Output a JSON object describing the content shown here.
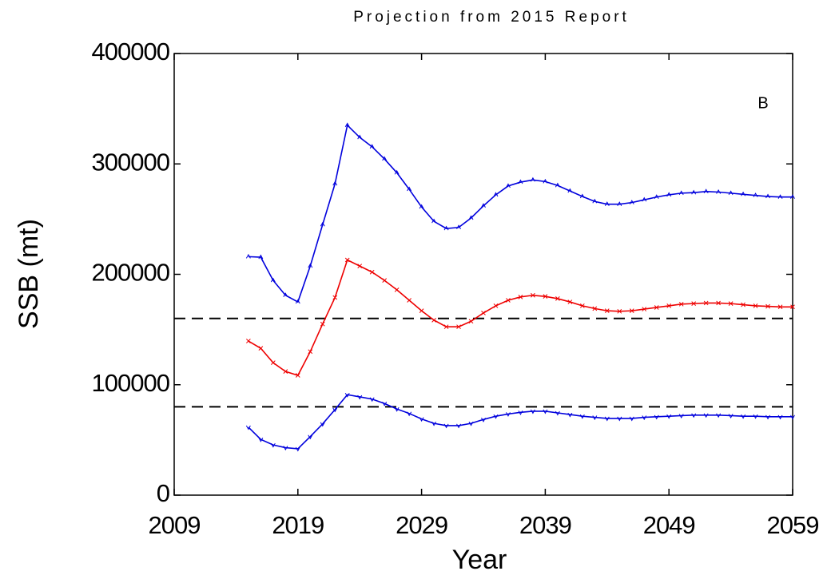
{
  "chart_data": {
    "type": "line",
    "title": "Projection from 2015 Report",
    "annotation": "B",
    "xlabel": "Year",
    "ylabel": "SSB (mt)",
    "xlim": [
      2009,
      2059
    ],
    "xticks": [
      2009,
      2019,
      2029,
      2039,
      2049,
      2059
    ],
    "ylim": [
      0,
      400000
    ],
    "yticks": [
      0,
      100000,
      200000,
      300000,
      400000
    ],
    "hlines": [
      160000,
      80000
    ],
    "x": [
      2015,
      2016,
      2017,
      2018,
      2019,
      2020,
      2021,
      2022,
      2023,
      2024,
      2025,
      2026,
      2027,
      2028,
      2029,
      2030,
      2031,
      2032,
      2033,
      2034,
      2035,
      2036,
      2037,
      2038,
      2039,
      2040,
      2041,
      2042,
      2043,
      2044,
      2045,
      2046,
      2047,
      2048,
      2049,
      2050,
      2051,
      2052,
      2053,
      2054,
      2055,
      2056,
      2057,
      2058,
      2059
    ],
    "series": [
      {
        "color": "#0000dd",
        "marker": "up",
        "values": [
          216000,
          215500,
          194500,
          181000,
          175000,
          207500,
          245000,
          282000,
          335000,
          324000,
          315500,
          304500,
          292000,
          277000,
          261000,
          248000,
          241500,
          242500,
          251000,
          262000,
          272000,
          280000,
          283500,
          285500,
          284000,
          280500,
          275500,
          270500,
          266000,
          263500,
          263500,
          265000,
          267500,
          270000,
          272000,
          273500,
          274000,
          275000,
          274500,
          273500,
          272500,
          271500,
          270500,
          270000,
          270000
        ]
      },
      {
        "color": "#ee0000",
        "marker": "cross",
        "values": [
          139600,
          133000,
          120000,
          112000,
          108500,
          130000,
          155000,
          179000,
          213000,
          207500,
          202000,
          194500,
          186000,
          176500,
          167000,
          158500,
          152500,
          152500,
          157500,
          165000,
          171500,
          176500,
          179500,
          181000,
          180000,
          178000,
          175000,
          171500,
          169000,
          167000,
          166500,
          167000,
          168500,
          170000,
          171500,
          173000,
          173500,
          174000,
          174000,
          173500,
          172500,
          171500,
          171000,
          170500,
          170500
        ]
      },
      {
        "color": "#0000dd",
        "marker": "down",
        "values": [
          61500,
          50500,
          45500,
          43000,
          42000,
          53000,
          64500,
          77500,
          91000,
          89000,
          87000,
          83000,
          78000,
          74000,
          69000,
          65000,
          63000,
          63000,
          65000,
          68500,
          71500,
          73500,
          75000,
          76000,
          76000,
          74500,
          73000,
          71500,
          70500,
          69500,
          69500,
          69500,
          70500,
          71000,
          71500,
          72000,
          72500,
          72500,
          72500,
          72000,
          71500,
          71500,
          71000,
          71000,
          71000
        ]
      }
    ]
  }
}
